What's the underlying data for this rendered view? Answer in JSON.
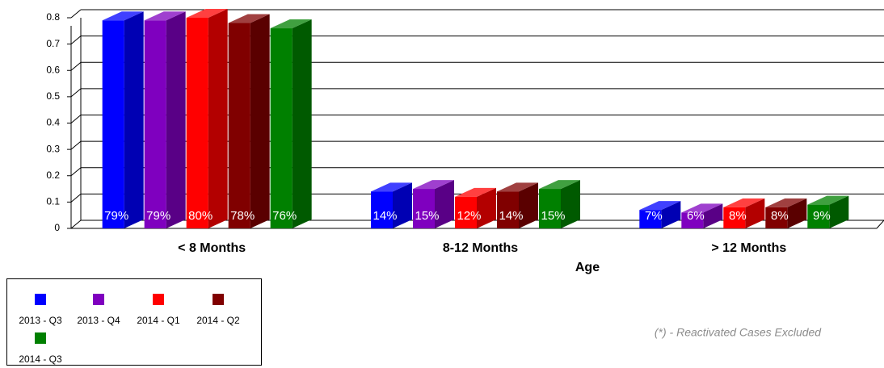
{
  "chart_data": {
    "type": "bar3d",
    "categories": [
      "< 8 Months",
      "8-12 Months",
      "> 12 Months"
    ],
    "x_label": "Age",
    "note": "(*) - Reactivated Cases Excluded",
    "ylim": [
      0,
      0.8
    ],
    "yticks": [
      0,
      0.1,
      0.2,
      0.3,
      0.4,
      0.5,
      0.6,
      0.7,
      0.8
    ],
    "grid": true,
    "legend": "bottom-left",
    "series": [
      {
        "name": "2013 - Q3",
        "color": "#0000ff",
        "values": [
          0.79,
          0.14,
          0.07
        ],
        "value_labels": [
          "79%",
          "14%",
          "7%"
        ]
      },
      {
        "name": "2013 - Q4",
        "color": "#7f00bf",
        "values": [
          0.79,
          0.15,
          0.06
        ],
        "value_labels": [
          "79%",
          "15%",
          "6%"
        ]
      },
      {
        "name": "2014 - Q1",
        "color": "#ff0000",
        "values": [
          0.8,
          0.12,
          0.08
        ],
        "value_labels": [
          "80%",
          "12%",
          "8%"
        ]
      },
      {
        "name": "2014 - Q2",
        "color": "#800000",
        "values": [
          0.78,
          0.14,
          0.08
        ],
        "value_labels": [
          "78%",
          "14%",
          "8%"
        ]
      },
      {
        "name": "2014 - Q3",
        "color": "#008000",
        "values": [
          0.76,
          0.15,
          0.09
        ],
        "value_labels": [
          "76%",
          "15%",
          "9%"
        ]
      }
    ]
  }
}
